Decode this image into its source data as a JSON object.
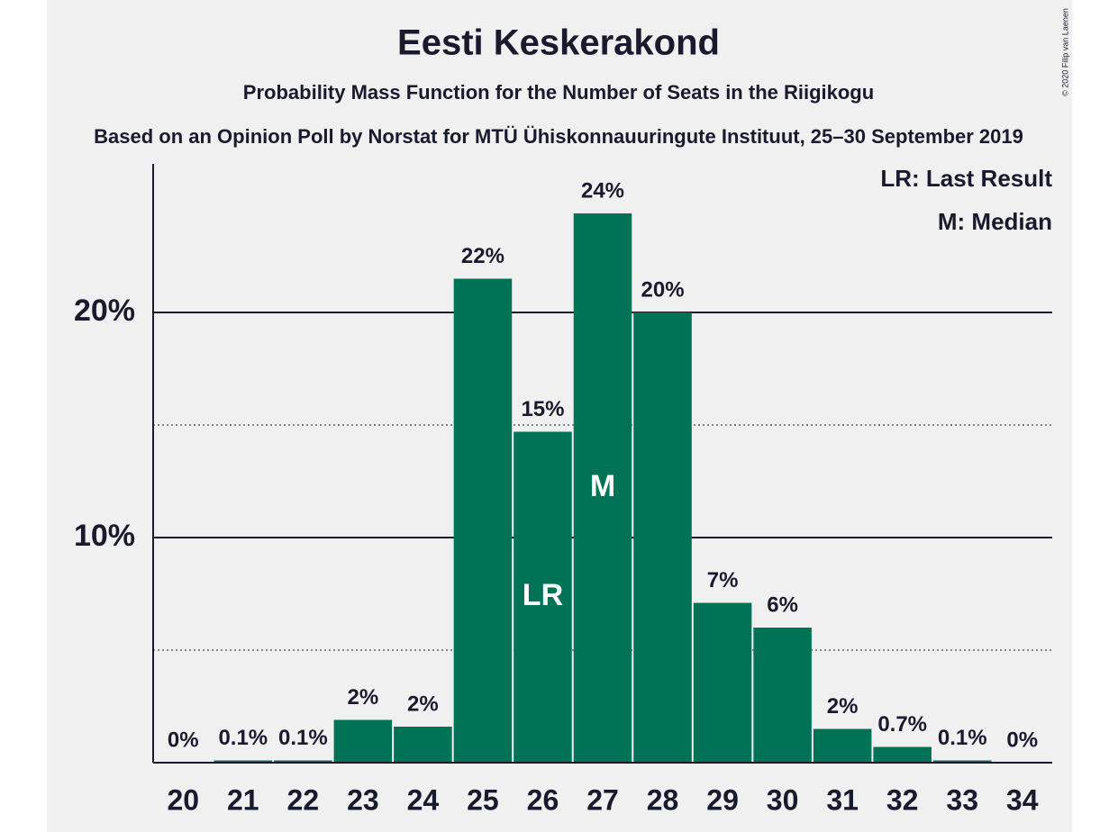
{
  "chart_data": {
    "type": "bar",
    "title": "Eesti Keskerakond",
    "subtitle": "Probability Mass Function for the Number of Seats in the Riigikogu",
    "caption": "Based on an Opinion Poll by Norstat for MTÜ Ühiskonnauuringute Instituut, 25–30 September 2019",
    "copyright": "© 2020 Filip van Laenen",
    "categories": [
      "20",
      "21",
      "22",
      "23",
      "24",
      "25",
      "26",
      "27",
      "28",
      "29",
      "30",
      "31",
      "32",
      "33",
      "34"
    ],
    "values": [
      0,
      0.1,
      0.1,
      1.9,
      1.6,
      21.5,
      14.7,
      24.4,
      20.0,
      7.1,
      6.0,
      1.5,
      0.7,
      0.1,
      0
    ],
    "value_labels": [
      "0%",
      "0.1%",
      "0.1%",
      "2%",
      "2%",
      "22%",
      "15%",
      "24%",
      "20%",
      "7%",
      "6%",
      "2%",
      "0.7%",
      "0.1%",
      "0%"
    ],
    "color": "#007356",
    "ylim": [
      0,
      26.6
    ],
    "yticks": [
      {
        "value": 10,
        "label": "10%"
      },
      {
        "value": 20,
        "label": "20%"
      }
    ],
    "minor_yticks": [
      5,
      15
    ],
    "grid": true,
    "bar_annotations": [
      {
        "category": "26",
        "text": "LR"
      },
      {
        "category": "27",
        "text": "M"
      }
    ],
    "legend": [
      "LR: Last Result",
      "M: Median"
    ]
  }
}
